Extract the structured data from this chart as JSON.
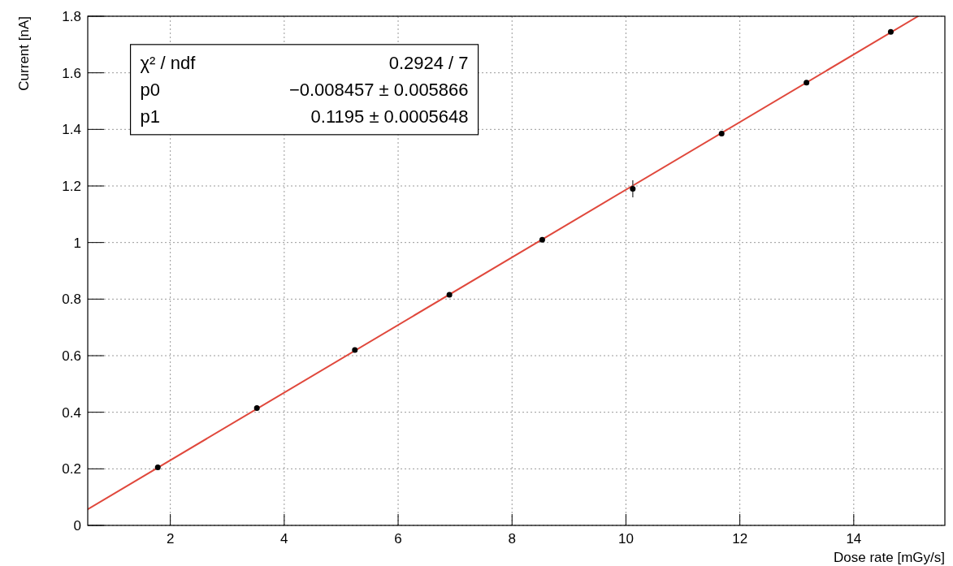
{
  "chart_data": {
    "type": "scatter",
    "xlabel": "Dose rate [mGy/s]",
    "ylabel": "Current [nA]",
    "xlim": [
      0.55,
      15.6
    ],
    "ylim": [
      0,
      1.8
    ],
    "xticks": [
      2,
      4,
      6,
      8,
      10,
      12,
      14
    ],
    "yticks": [
      0,
      0.2,
      0.4,
      0.6,
      0.8,
      1,
      1.2,
      1.4,
      1.6,
      1.8
    ],
    "grid": true,
    "annotations": [
      "χ² / ndf",
      "0.2924 / 7",
      "p0",
      "−0.008457 ± 0.005866",
      "p1",
      "0.1195 ± 0.0005648"
    ],
    "series": [
      {
        "marker": "circle",
        "color": "#000000",
        "x": [
          1.78,
          3.52,
          5.24,
          6.9,
          8.53,
          10.12,
          11.68,
          13.17,
          14.65
        ],
        "values": [
          0.205,
          0.415,
          0.62,
          0.815,
          1.01,
          1.19,
          1.385,
          1.565,
          1.745
        ],
        "errors": [
          0.008,
          0.01,
          0.008,
          0.008,
          0.008,
          0.03,
          0.008,
          0.008,
          0.008
        ]
      },
      {
        "type": "line",
        "marker": "none",
        "color": "#e0483c",
        "x": [
          0.55,
          15.13
        ],
        "values": [
          0.057,
          1.8
        ]
      }
    ]
  }
}
